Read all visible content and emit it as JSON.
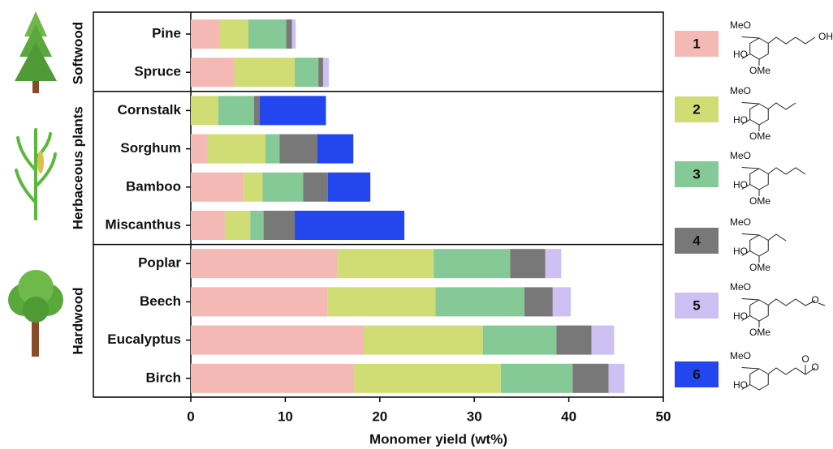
{
  "chart_data": {
    "type": "stacked-barh",
    "xlabel": "Monomer yield (wt%)",
    "xlim": [
      0,
      50
    ],
    "xticks": [
      0,
      10,
      20,
      30,
      40,
      50
    ],
    "groups": [
      {
        "name": "Softwood",
        "categories": [
          "Pine",
          "Spruce"
        ]
      },
      {
        "name": "Herbaceous plants",
        "categories": [
          "Cornstalk",
          "Sorghum",
          "Bamboo",
          "Miscanthus"
        ]
      },
      {
        "name": "Hardwood",
        "categories": [
          "Poplar",
          "Beech",
          "Eucalyptus",
          "Birch"
        ]
      }
    ],
    "series": [
      {
        "name": "1",
        "color": "#f4b9b4",
        "structure": [
          "MeO",
          "HO",
          "OMe",
          "OH"
        ],
        "values": [
          3.0,
          4.6,
          0,
          1.8,
          5.6,
          3.6,
          15.5,
          14.5,
          18.3,
          17.3
        ]
      },
      {
        "name": "2",
        "color": "#d0dc74",
        "structure": [
          "MeO",
          "HO",
          "OMe"
        ],
        "values": [
          3.1,
          6.4,
          2.9,
          6.1,
          2.0,
          2.7,
          10.2,
          11.4,
          12.6,
          15.5
        ]
      },
      {
        "name": "3",
        "color": "#84c996",
        "structure": [
          "MeO",
          "HO",
          "OMe"
        ],
        "values": [
          4.0,
          2.5,
          3.8,
          1.5,
          4.3,
          1.4,
          8.1,
          9.4,
          7.8,
          7.6
        ]
      },
      {
        "name": "4",
        "color": "#787878",
        "structure": [
          "MeO",
          "HO",
          "OMe"
        ],
        "values": [
          0.6,
          0.5,
          0.6,
          4.0,
          2.6,
          3.3,
          3.7,
          3.0,
          3.7,
          3.8
        ]
      },
      {
        "name": "5",
        "color": "#cdc0f3",
        "structure": [
          "MeO",
          "HO",
          "OMe",
          "O"
        ],
        "values": [
          0.4,
          0.6,
          0,
          0,
          0,
          0,
          1.7,
          1.9,
          2.4,
          1.7
        ]
      },
      {
        "name": "6",
        "color": "#2446ee",
        "structure": [
          "MeO",
          "HO",
          "O",
          "O"
        ],
        "values": [
          0,
          0,
          7.0,
          3.8,
          4.5,
          11.6,
          0,
          0,
          0,
          0
        ]
      }
    ]
  }
}
